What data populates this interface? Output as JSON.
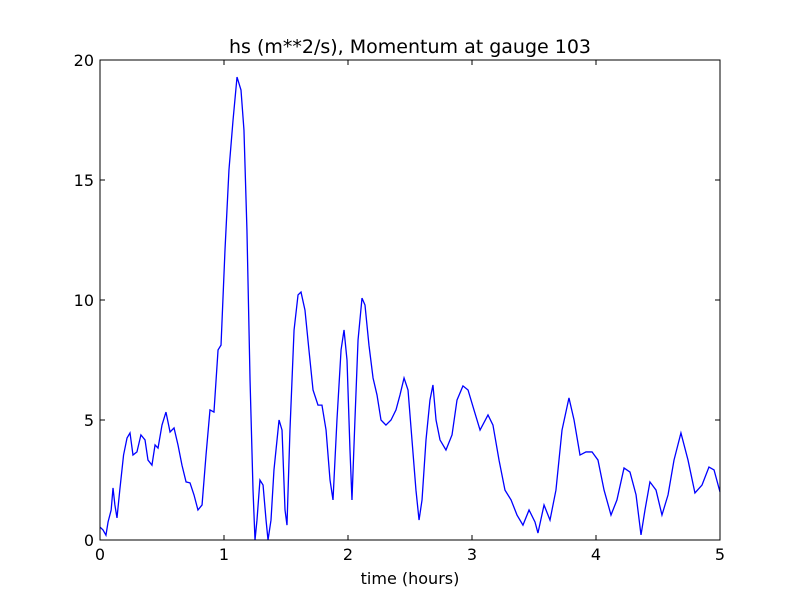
{
  "chart_data": {
    "type": "line",
    "title": "hs (m**2/s), Momentum at gauge 103",
    "xlabel": "time (hours)",
    "xlim": [
      0,
      5
    ],
    "xticks": [
      0,
      1,
      2,
      3,
      4,
      5
    ],
    "ylim": [
      0,
      20
    ],
    "yticks": [
      0,
      5,
      10,
      15,
      20
    ],
    "reference_line": {
      "value": 0,
      "color": "#000000",
      "style": "dashed"
    },
    "x": [
      0,
      0.024,
      0.048,
      0.065,
      0.09,
      0.105,
      0.12,
      0.137,
      0.16,
      0.19,
      0.218,
      0.242,
      0.266,
      0.298,
      0.33,
      0.363,
      0.387,
      0.419,
      0.444,
      0.468,
      0.5,
      0.532,
      0.565,
      0.597,
      0.629,
      0.661,
      0.694,
      0.726,
      0.758,
      0.79,
      0.823,
      0.855,
      0.887,
      0.919,
      0.952,
      0.976,
      1.008,
      1.04,
      1.073,
      1.105,
      1.137,
      1.161,
      1.185,
      1.21,
      1.234,
      1.25,
      1.266,
      1.29,
      1.315,
      1.339,
      1.355,
      1.379,
      1.403,
      1.444,
      1.468,
      1.492,
      1.508,
      1.532,
      1.565,
      1.597,
      1.621,
      1.653,
      1.685,
      1.718,
      1.758,
      1.79,
      1.823,
      1.855,
      1.879,
      1.911,
      1.944,
      1.968,
      1.992,
      2.016,
      2.032,
      2.056,
      2.081,
      2.113,
      2.137,
      2.169,
      2.202,
      2.234,
      2.266,
      2.306,
      2.347,
      2.387,
      2.419,
      2.452,
      2.484,
      2.516,
      2.548,
      2.573,
      2.597,
      2.629,
      2.661,
      2.685,
      2.71,
      2.742,
      2.79,
      2.839,
      2.879,
      2.927,
      2.968,
      3.016,
      3.065,
      3.129,
      3.169,
      3.218,
      3.266,
      3.315,
      3.363,
      3.411,
      3.46,
      3.508,
      3.532,
      3.581,
      3.629,
      3.677,
      3.726,
      3.782,
      3.823,
      3.871,
      3.919,
      3.968,
      4.016,
      4.065,
      4.121,
      4.169,
      4.226,
      4.274,
      4.323,
      4.363,
      4.395,
      4.435,
      4.484,
      4.532,
      4.581,
      4.629,
      4.685,
      4.742,
      4.798,
      4.855,
      4.911,
      4.952,
      5
    ],
    "series": [
      {
        "color": "#0000ff",
        "values": [
          0.54,
          0.42,
          0.2,
          0.75,
          1.25,
          2.17,
          1.46,
          0.92,
          2.1,
          3.54,
          4.25,
          4.46,
          3.54,
          3.67,
          4.38,
          4.17,
          3.33,
          3.12,
          3.96,
          3.83,
          4.79,
          5.33,
          4.5,
          4.67,
          3.96,
          3.12,
          2.42,
          2.38,
          1.88,
          1.25,
          1.46,
          3.54,
          5.42,
          5.33,
          7.92,
          8.12,
          12.08,
          15.42,
          17.5,
          19.29,
          18.75,
          17.08,
          12.92,
          6.67,
          2.08,
          0,
          0.83,
          2.5,
          2.29,
          0.83,
          0,
          0.83,
          2.92,
          5,
          4.58,
          1.25,
          0.62,
          4.58,
          8.75,
          10.21,
          10.33,
          9.58,
          7.92,
          6.25,
          5.62,
          5.62,
          4.58,
          2.5,
          1.67,
          5,
          7.92,
          8.75,
          7.5,
          3.75,
          1.67,
          5,
          8.33,
          10.08,
          9.79,
          8.12,
          6.75,
          6.04,
          5,
          4.79,
          5,
          5.42,
          6.04,
          6.75,
          6.25,
          4.17,
          2.08,
          0.83,
          1.67,
          4.17,
          5.83,
          6.46,
          5,
          4.17,
          3.75,
          4.38,
          5.83,
          6.42,
          6.25,
          5.42,
          4.58,
          5.21,
          4.79,
          3.33,
          2.08,
          1.67,
          1.04,
          0.62,
          1.25,
          0.75,
          0.29,
          1.46,
          0.83,
          2.08,
          4.58,
          5.92,
          5,
          3.54,
          3.67,
          3.67,
          3.33,
          2.08,
          1.04,
          1.67,
          3,
          2.83,
          1.88,
          0.21,
          1.25,
          2.42,
          2.08,
          1.04,
          1.88,
          3.33,
          4.46,
          3.33,
          1.96,
          2.29,
          3.04,
          2.92,
          2
        ]
      }
    ]
  }
}
